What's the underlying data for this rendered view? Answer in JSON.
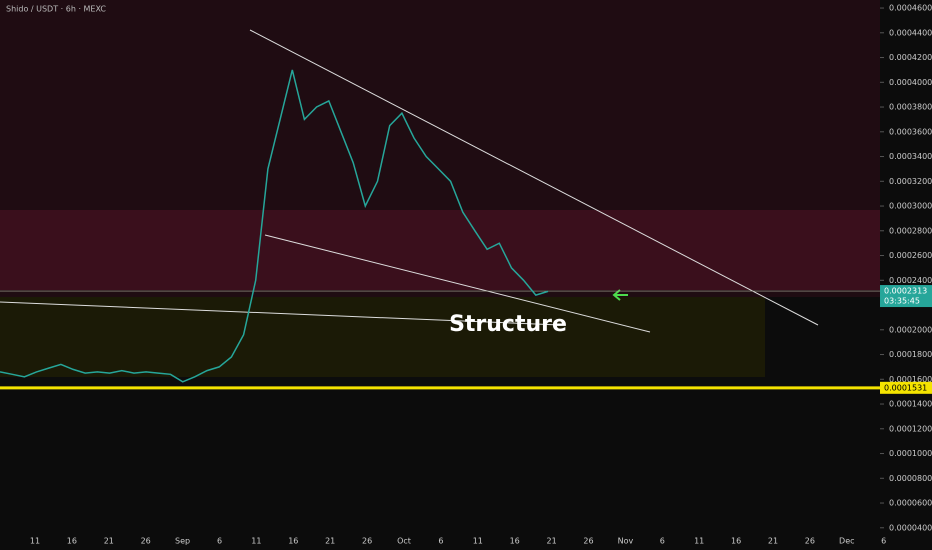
{
  "chart_data": {
    "type": "line",
    "title": "Shido / USDT · 6h · MEXC",
    "annotation": "Structure",
    "x_labels": [
      "11",
      "16",
      "21",
      "26",
      "Sep",
      "6",
      "11",
      "16",
      "21",
      "26",
      "Oct",
      "6",
      "11",
      "16",
      "21",
      "26",
      "Nov",
      "6",
      "11",
      "16",
      "21",
      "26",
      "Dec",
      "6"
    ],
    "color": "#26a69a",
    "values": [
      0.000166,
      0.000164,
      0.000162,
      0.000166,
      0.000169,
      0.000172,
      0.000168,
      0.000165,
      0.000166,
      0.000165,
      0.000167,
      0.000165,
      0.000166,
      0.000165,
      0.000164,
      0.000158,
      0.000162,
      0.000167,
      0.00017,
      0.000178,
      0.000196,
      0.00024,
      0.00033,
      0.00037,
      0.00041,
      0.00037,
      0.00038,
      0.000385,
      0.00036,
      0.000335,
      0.0003,
      0.00032,
      0.000365,
      0.000375,
      0.000355,
      0.00034,
      0.00033,
      0.00032,
      0.000295,
      0.00028,
      0.000265,
      0.00027,
      0.00025,
      0.00024,
      0.000228,
      0.000231
    ],
    "ylim": [
      3.82e-05,
      0.0004665
    ],
    "yticks": [
      {
        "value": 0.00046,
        "label": "0.0004600"
      },
      {
        "value": 0.00044,
        "label": "0.0004400"
      },
      {
        "value": 0.00042,
        "label": "0.0004200"
      },
      {
        "value": 0.0004,
        "label": "0.0004000"
      },
      {
        "value": 0.00038,
        "label": "0.0003800"
      },
      {
        "value": 0.00036,
        "label": "0.0003600"
      },
      {
        "value": 0.00034,
        "label": "0.0003400"
      },
      {
        "value": 0.00032,
        "label": "0.0003200"
      },
      {
        "value": 0.0003,
        "label": "0.0003000"
      },
      {
        "value": 0.00028,
        "label": "0.0002800"
      },
      {
        "value": 0.00026,
        "label": "0.0002600"
      },
      {
        "value": 0.00024,
        "label": "0.0002400"
      },
      {
        "value": 0.0002,
        "label": "0.0002000"
      },
      {
        "value": 0.00018,
        "label": "0.0001800"
      },
      {
        "value": 0.00016,
        "label": "0.0001600"
      },
      {
        "value": 0.00014,
        "label": "0.0001400"
      },
      {
        "value": 0.00012,
        "label": "0.0001200"
      },
      {
        "value": 0.0001,
        "label": "0.0001000"
      },
      {
        "value": 8e-05,
        "label": "0.0000800"
      },
      {
        "value": 6e-05,
        "label": "0.0000600"
      },
      {
        "value": 4e-05,
        "label": "0.0000400"
      }
    ],
    "last_price": {
      "value": 0.0002313,
      "countdown": "03:35:45",
      "color": "#26a69a"
    },
    "support": {
      "value": 0.0001531,
      "color": "#f5e400"
    }
  }
}
